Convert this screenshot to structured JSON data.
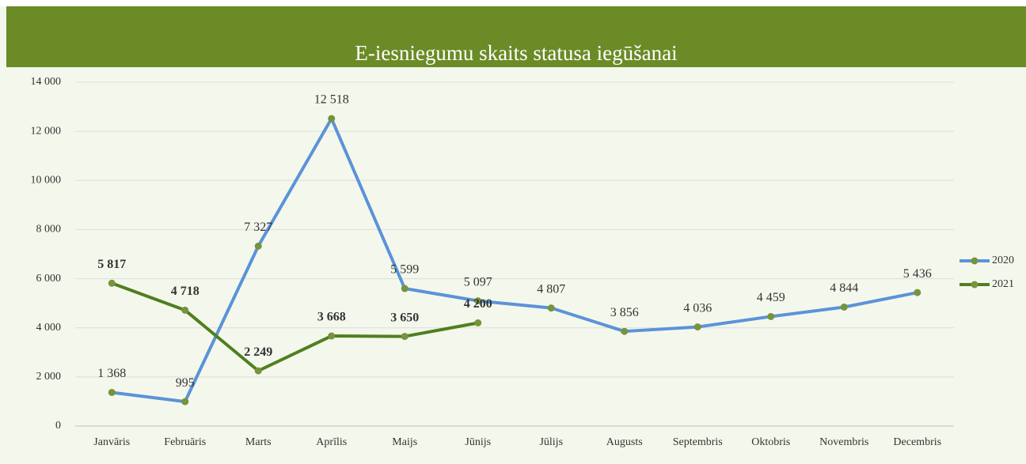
{
  "chart_data": {
    "type": "line",
    "title": "E-iesniegumu skaits statusa iegūšanai",
    "categories": [
      "Janvāris",
      "Februāris",
      "Marts",
      "Aprīlis",
      "Maijs",
      "Jūnijs",
      "Jūlijs",
      "Augusts",
      "Septembris",
      "Oktobris",
      "Novembris",
      "Decembris"
    ],
    "series": [
      {
        "name": "2020",
        "color": "#5b93d8",
        "label_weight": "normal",
        "values": [
          1368,
          995,
          7327,
          12518,
          5599,
          5097,
          4807,
          3856,
          4036,
          4459,
          4844,
          5436
        ],
        "value_labels": [
          "1 368",
          "995",
          "7 327",
          "12 518",
          "5 599",
          "5 097",
          "4 807",
          "3 856",
          "4 036",
          "4 459",
          "4 844",
          "5 436"
        ]
      },
      {
        "name": "2021",
        "color": "#4f7f1f",
        "label_weight": "bold",
        "values": [
          5817,
          4718,
          2249,
          3668,
          3650,
          4200,
          null,
          null,
          null,
          null,
          null,
          null
        ],
        "value_labels": [
          "5 817",
          "4 718",
          "2 249",
          "3 668",
          "3 650",
          "4 200",
          null,
          null,
          null,
          null,
          null,
          null
        ]
      }
    ],
    "marker_color": "#77933c",
    "ylim": [
      0,
      14000
    ],
    "yticks": [
      0,
      {
        "value": 2000,
        "label": "2 000"
      },
      {
        "value": 4000,
        "label": "4 000"
      },
      {
        "value": 6000,
        "label": "6 000"
      },
      {
        "value": 8000,
        "label": "8 000"
      },
      {
        "value": 10000,
        "label": "10 000"
      },
      {
        "value": 12000,
        "label": "12 000"
      },
      {
        "value": 14000,
        "label": "14 000"
      }
    ],
    "grid": true,
    "legend": "right"
  }
}
